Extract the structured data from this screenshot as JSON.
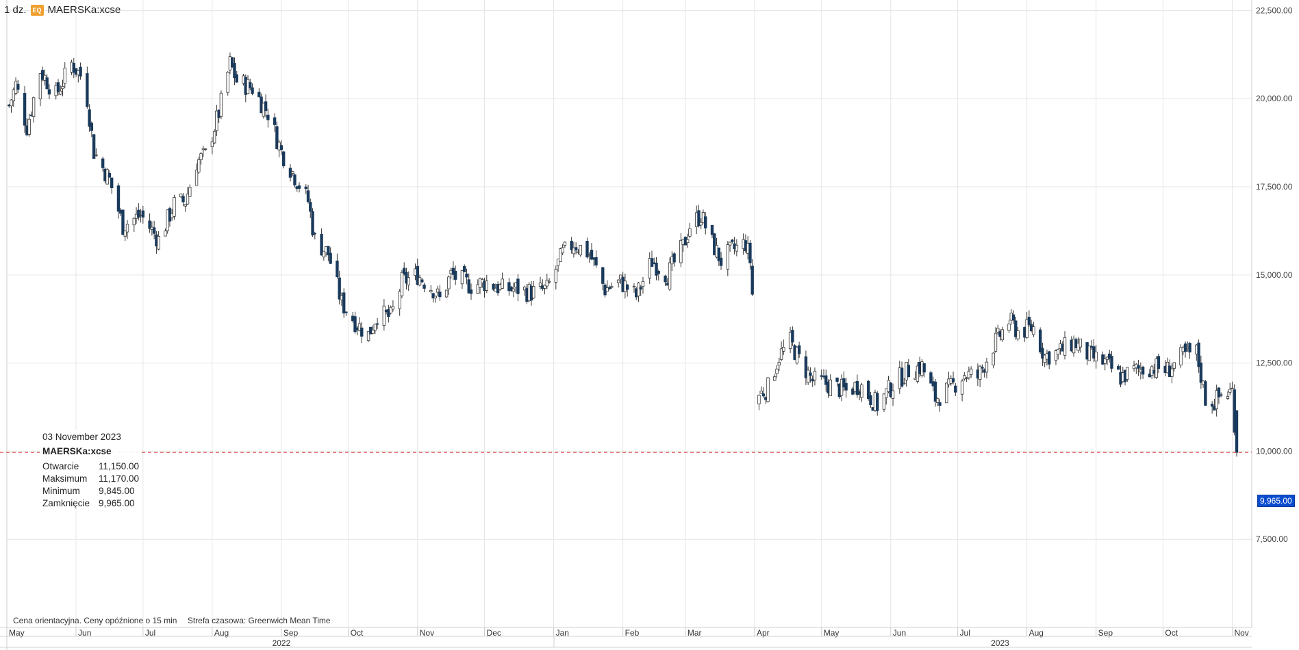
{
  "header": {
    "interval": "1 dz.",
    "badge": "EQ",
    "symbol": "MAERSKa:xcse"
  },
  "tooltip": {
    "date": "03 November 2023",
    "symbol": "MAERSKa:xcse",
    "rows": [
      {
        "label": "Otwarcie",
        "value": "11,150.00"
      },
      {
        "label": "Maksimum",
        "value": "11,170.00"
      },
      {
        "label": "Minimum",
        "value": "9,845.00"
      },
      {
        "label": "Zamknięcie",
        "value": "9,965.00"
      }
    ]
  },
  "footnote": {
    "delay": "Cena orientacyjna. Ceny opóźnione o 15 min",
    "timezone": "Strefa czasowa: Greenwich Mean Time"
  },
  "last_price_label": "9,965.00",
  "colors": {
    "up": "#ffffff",
    "down": "#1a3a5c",
    "outline": "#333333",
    "grid": "#e6e6e6",
    "last_line": "#e06060",
    "last_tag": "#0b4ccf"
  },
  "chart_data": {
    "type": "candlestick",
    "title": "",
    "ylim": [
      5000,
      22800
    ],
    "y_ticks": [
      7500,
      10000,
      12500,
      15000,
      17500,
      20000,
      22500
    ],
    "y_tick_labels": [
      "7,500.00",
      "10,000.00",
      "12,500.00",
      "15,000.00",
      "17,500.00",
      "20,000.00",
      "22,500.00"
    ],
    "x_tick_labels": [
      "May",
      "Jun",
      "Jul",
      "Aug",
      "Sep",
      "Oct",
      "Nov",
      "Dec",
      "Jan",
      "Feb",
      "Mar",
      "Apr",
      "May",
      "Jun",
      "Jul",
      "Aug",
      "Sep",
      "Oct",
      "Nov"
    ],
    "x_tick_dates": [
      "2022-05-01",
      "2022-06-01",
      "2022-07-01",
      "2022-08-01",
      "2022-09-01",
      "2022-10-01",
      "2022-11-01",
      "2022-12-01",
      "2023-01-01",
      "2023-02-01",
      "2023-03-01",
      "2023-04-01",
      "2023-05-01",
      "2023-06-01",
      "2023-07-01",
      "2023-08-01",
      "2023-09-01",
      "2023-10-01",
      "2023-11-01"
    ],
    "year_labels": [
      {
        "label": "2022",
        "date": "2022-09-01"
      },
      {
        "label": "2023",
        "date": "2023-07-20"
      }
    ],
    "last_price": 9965,
    "price_path": [
      [
        "2022-05-01",
        19600
      ],
      [
        "2022-05-05",
        20400
      ],
      [
        "2022-05-10",
        19200
      ],
      [
        "2022-05-16",
        20800
      ],
      [
        "2022-05-23",
        20100
      ],
      [
        "2022-05-30",
        21000
      ],
      [
        "2022-06-05",
        20500
      ],
      [
        "2022-06-09",
        18500
      ],
      [
        "2022-06-16",
        17700
      ],
      [
        "2022-06-22",
        16400
      ],
      [
        "2022-06-30",
        16700
      ],
      [
        "2022-07-08",
        16000
      ],
      [
        "2022-07-15",
        17000
      ],
      [
        "2022-07-20",
        17100
      ],
      [
        "2022-07-25",
        18200
      ],
      [
        "2022-07-29",
        18400
      ],
      [
        "2022-08-04",
        19600
      ],
      [
        "2022-08-09",
        21000
      ],
      [
        "2022-08-12",
        20500
      ],
      [
        "2022-08-19",
        20300
      ],
      [
        "2022-08-26",
        19600
      ],
      [
        "2022-09-01",
        18500
      ],
      [
        "2022-09-07",
        17800
      ],
      [
        "2022-09-13",
        17100
      ],
      [
        "2022-09-16",
        16000
      ],
      [
        "2022-09-22",
        15600
      ],
      [
        "2022-09-28",
        14200
      ],
      [
        "2022-10-05",
        13600
      ],
      [
        "2022-10-10",
        13300
      ],
      [
        "2022-10-14",
        13900
      ],
      [
        "2022-10-20",
        13800
      ],
      [
        "2022-10-25",
        14800
      ],
      [
        "2022-11-01",
        15000
      ],
      [
        "2022-11-08",
        14600
      ],
      [
        "2022-11-11",
        14300
      ],
      [
        "2022-11-16",
        15000
      ],
      [
        "2022-11-25",
        14700
      ],
      [
        "2022-12-02",
        14800
      ],
      [
        "2022-12-09",
        14600
      ],
      [
        "2022-12-16",
        14600
      ],
      [
        "2022-12-22",
        14500
      ],
      [
        "2022-12-29",
        14600
      ],
      [
        "2023-01-05",
        15600
      ],
      [
        "2023-01-10",
        15900
      ],
      [
        "2023-01-17",
        15600
      ],
      [
        "2023-01-24",
        14600
      ],
      [
        "2023-01-31",
        14800
      ],
      [
        "2023-02-07",
        14400
      ],
      [
        "2023-02-14",
        15400
      ],
      [
        "2023-02-21",
        15000
      ],
      [
        "2023-02-28",
        15800
      ],
      [
        "2023-03-03",
        16400
      ],
      [
        "2023-03-08",
        16700
      ],
      [
        "2023-03-13",
        15900
      ],
      [
        "2023-03-17",
        15400
      ],
      [
        "2023-03-22",
        15700
      ],
      [
        "2023-03-28",
        15900
      ],
      [
        "2023-03-30",
        15400
      ],
      [
        "2023-04-03",
        11600
      ],
      [
        "2023-04-07",
        11800
      ],
      [
        "2023-04-12",
        12700
      ],
      [
        "2023-04-17",
        13100
      ],
      [
        "2023-04-21",
        12600
      ],
      [
        "2023-04-27",
        12000
      ],
      [
        "2023-05-04",
        11900
      ],
      [
        "2023-05-12",
        11700
      ],
      [
        "2023-05-18",
        11900
      ],
      [
        "2023-05-26",
        11300
      ],
      [
        "2023-06-02",
        11900
      ],
      [
        "2023-06-09",
        12300
      ],
      [
        "2023-06-15",
        12400
      ],
      [
        "2023-06-21",
        11500
      ],
      [
        "2023-06-28",
        11800
      ],
      [
        "2023-07-04",
        12200
      ],
      [
        "2023-07-10",
        12100
      ],
      [
        "2023-07-17",
        13000
      ],
      [
        "2023-07-24",
        13700
      ],
      [
        "2023-07-28",
        13400
      ],
      [
        "2023-08-04",
        13500
      ],
      [
        "2023-08-09",
        12700
      ],
      [
        "2023-08-15",
        12800
      ],
      [
        "2023-08-22",
        13100
      ],
      [
        "2023-08-29",
        12700
      ],
      [
        "2023-09-05",
        12500
      ],
      [
        "2023-09-12",
        12100
      ],
      [
        "2023-09-19",
        12300
      ],
      [
        "2023-09-26",
        12400
      ],
      [
        "2023-10-03",
        12300
      ],
      [
        "2023-10-10",
        12700
      ],
      [
        "2023-10-16",
        12800
      ],
      [
        "2023-10-20",
        11500
      ],
      [
        "2023-10-24",
        11400
      ],
      [
        "2023-10-27",
        11600
      ],
      [
        "2023-11-01",
        11700
      ],
      [
        "2023-11-03",
        9965
      ]
    ]
  }
}
